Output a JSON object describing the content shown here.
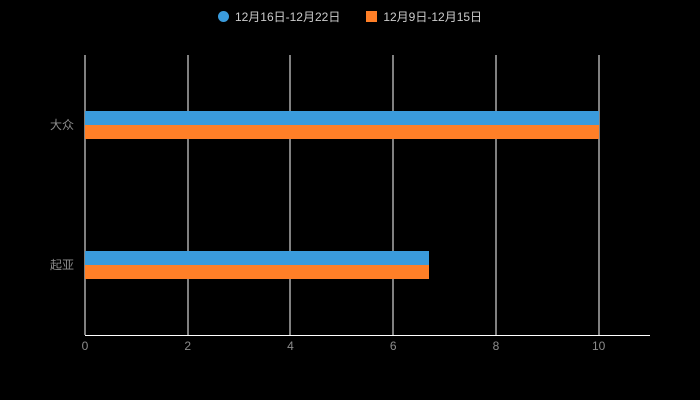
{
  "chart_data": {
    "type": "bar",
    "orientation": "horizontal",
    "title": "",
    "categories": [
      "大众",
      "起亚"
    ],
    "series": [
      {
        "name": "12月16日-12月22日",
        "color": "#3A9BDC",
        "marker": "circle",
        "values": [
          10,
          6.7
        ]
      },
      {
        "name": "12月9日-12月15日",
        "color": "#FF7F27",
        "marker": "square",
        "values": [
          10,
          6.7
        ]
      }
    ],
    "xlim": [
      0,
      11
    ],
    "xticks": [
      0,
      2,
      4,
      6,
      8,
      10
    ],
    "grid": true,
    "legend_position": "top"
  },
  "colors": {
    "background": "#000000",
    "gridline": "#ffffff",
    "axis_text": "#8c8c8c",
    "legend_text": "#cccccc"
  }
}
